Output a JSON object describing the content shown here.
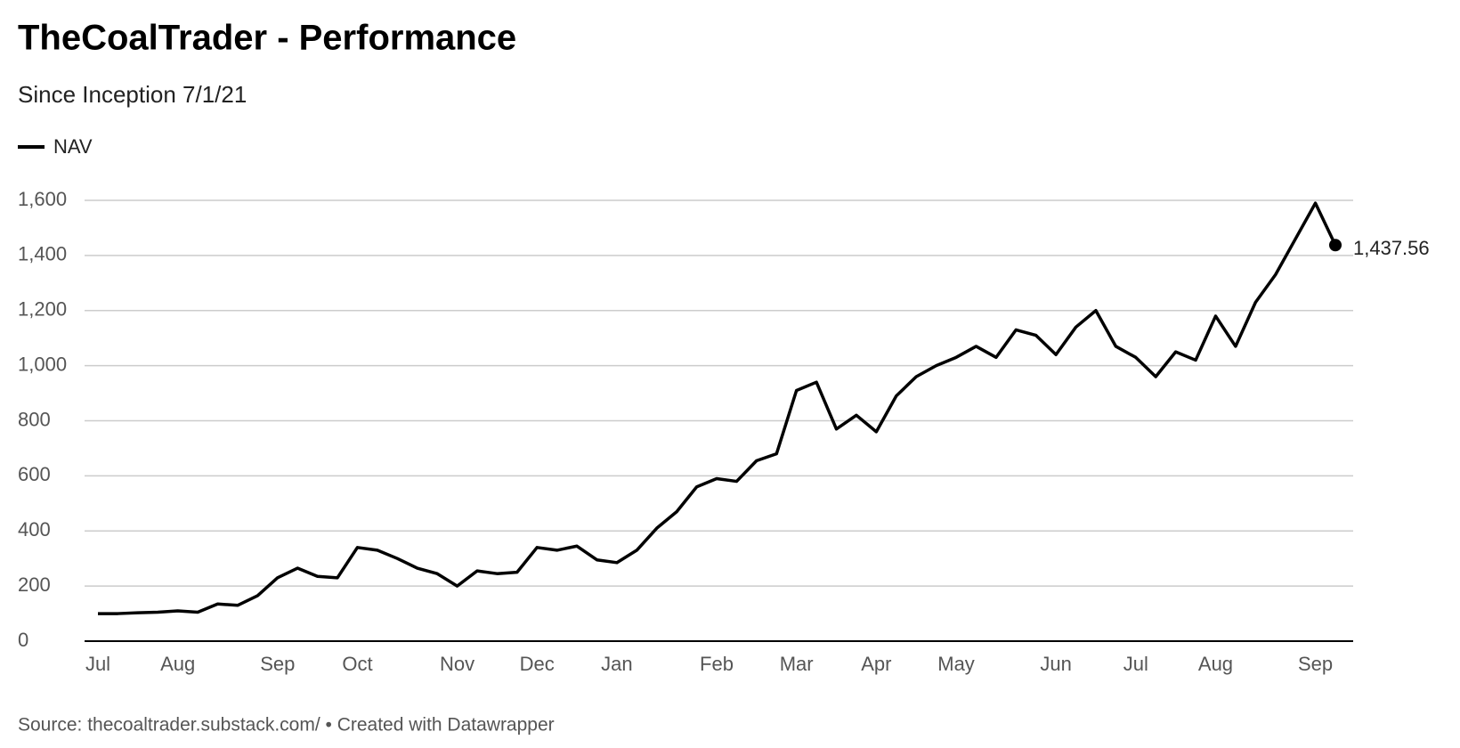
{
  "chart_data": {
    "type": "line",
    "title": "TheCoalTrader - Performance",
    "subtitle": "Since Inception 7/1/21",
    "source": "Source: thecoaltrader.substack.com/ • Created with Datawrapper",
    "categories": [
      "Jul",
      null,
      null,
      null,
      "Aug",
      null,
      null,
      null,
      null,
      "Sep",
      null,
      null,
      null,
      "Oct",
      null,
      null,
      null,
      null,
      "Nov",
      null,
      null,
      null,
      "Dec",
      null,
      null,
      null,
      "Jan",
      null,
      null,
      null,
      null,
      "Feb",
      null,
      null,
      null,
      "Mar",
      null,
      null,
      null,
      "Apr",
      null,
      null,
      null,
      "May",
      null,
      null,
      null,
      null,
      "Jun",
      null,
      null,
      null,
      "Jul",
      null,
      null,
      null,
      "Aug",
      null,
      null,
      null,
      null,
      "Sep",
      null
    ],
    "series": [
      {
        "name": "NAV",
        "color": "#000000",
        "values": [
          100,
          100,
          103,
          105,
          110,
          105,
          135,
          130,
          165,
          230,
          265,
          235,
          230,
          340,
          330,
          300,
          265,
          245,
          200,
          255,
          245,
          250,
          340,
          330,
          345,
          295,
          285,
          330,
          410,
          470,
          560,
          590,
          580,
          655,
          680,
          910,
          940,
          770,
          820,
          760,
          890,
          960,
          1000,
          1030,
          1070,
          1030,
          1130,
          1110,
          1040,
          1140,
          1200,
          1070,
          1030,
          960,
          1050,
          1020,
          1180,
          1070,
          1230,
          1330,
          1460,
          1590,
          1437.56
        ],
        "value_labels": [
          null,
          null,
          null,
          null,
          null,
          null,
          null,
          null,
          null,
          null,
          null,
          null,
          null,
          null,
          null,
          null,
          null,
          null,
          null,
          null,
          null,
          null,
          null,
          null,
          null,
          null,
          null,
          null,
          null,
          null,
          null,
          null,
          null,
          null,
          null,
          null,
          null,
          null,
          null,
          null,
          null,
          null,
          null,
          null,
          null,
          null,
          null,
          null,
          null,
          null,
          null,
          null,
          null,
          null,
          null,
          null,
          null,
          null,
          null,
          null,
          null,
          null,
          "1,437.56"
        ]
      }
    ],
    "ylim": [
      0,
      1600
    ],
    "yticks": [
      0,
      200,
      400,
      600,
      800,
      {
        "value": 1000,
        "label": "1,000"
      },
      {
        "value": 1200,
        "label": "1,200"
      },
      {
        "value": 1400,
        "label": "1,400"
      },
      {
        "value": 1600,
        "label": "1,600"
      }
    ],
    "grid": true
  }
}
